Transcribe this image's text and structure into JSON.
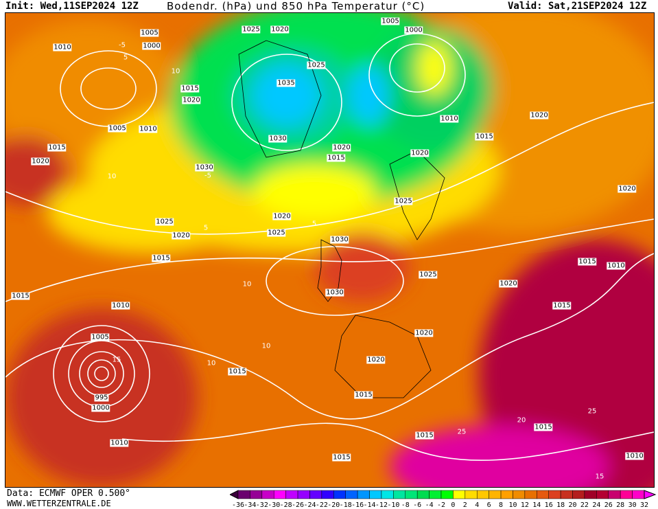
{
  "header": {
    "init": "Init: Wed,11SEP2024 12Z",
    "title": "Bodendr. (hPa) und 850 hPa Temperatur (°C)",
    "valid": "Valid: Sat,21SEP2024 12Z"
  },
  "footer": {
    "data": "Data: ECMWF OPER 0.500°",
    "site": "WWW.WETTERZENTRALE.DE"
  },
  "isobar_labels": [
    "1005",
    "1000",
    "1010",
    "1025",
    "1020",
    "1005",
    "1000",
    "1025",
    "1035",
    "1015",
    "1020",
    "1005",
    "1010",
    "1010",
    "1015",
    "1020",
    "1030",
    "1015",
    "1020",
    "1020",
    "1015",
    "1020",
    "1030",
    "1025",
    "1020",
    "1025",
    "1020",
    "1020",
    "1025",
    "1030",
    "1015",
    "1015",
    "1010",
    "1025",
    "1020",
    "1015",
    "1030",
    "1010",
    "1015",
    "1020",
    "1005",
    "1020",
    "1015",
    "995",
    "1000",
    "1015",
    "1010",
    "1015",
    "1015",
    "1015",
    "1010"
  ],
  "temperature_labels": [
    "-5",
    "5",
    "10",
    "-5",
    "10",
    "5",
    "5",
    "10",
    "15",
    "10",
    "10",
    "20",
    "25",
    "25",
    "15"
  ],
  "colorbar": {
    "labels": [
      "-36",
      "-34",
      "-32",
      "-30",
      "-28",
      "-26",
      "-24",
      "-22",
      "-20",
      "-18",
      "-16",
      "-14",
      "-12",
      "-10",
      "-8",
      "-6",
      "-4",
      "-2",
      "0",
      "2",
      "4",
      "6",
      "8",
      "10",
      "12",
      "14",
      "16",
      "18",
      "20",
      "22",
      "24",
      "26",
      "28",
      "30",
      "32"
    ],
    "colors": [
      "#6a006e",
      "#960096",
      "#c800c8",
      "#ff00ff",
      "#c000ff",
      "#9600ff",
      "#6400ff",
      "#3200ff",
      "#0032ff",
      "#0064ff",
      "#0096ff",
      "#00c8ff",
      "#00e6e6",
      "#00e6a0",
      "#00e678",
      "#00dc50",
      "#00f032",
      "#00ff00",
      "#ffff00",
      "#ffdc00",
      "#ffc800",
      "#ffb400",
      "#ffa000",
      "#f08c00",
      "#e87000",
      "#e65a10",
      "#dc4020",
      "#c83020",
      "#b41e1e",
      "#a00028",
      "#b40032",
      "#c8006e",
      "#ff0096",
      "#ff00c8"
    ],
    "low_color": "#3c003c",
    "high_color": "#ff00ff"
  }
}
